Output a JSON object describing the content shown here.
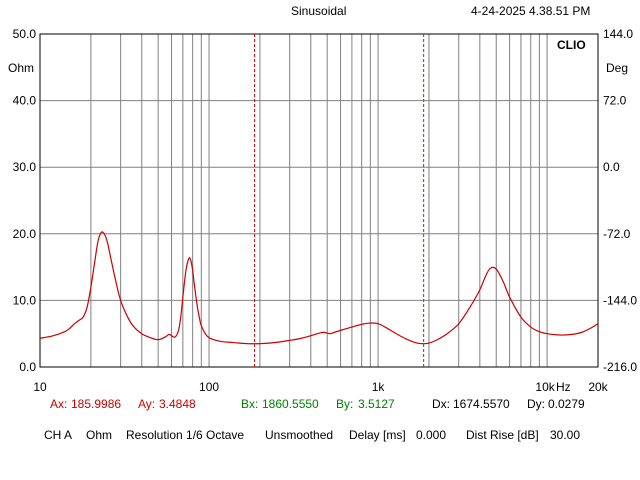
{
  "header": {
    "mode": "Sinusoidal",
    "datetime": "4-24-2025 4.38.51 PM"
  },
  "chart_data": {
    "type": "line",
    "brand": "CLIO",
    "x_scale": "log",
    "xlim": [
      10,
      20000
    ],
    "ylim": [
      0,
      50
    ],
    "ylim_right": [
      -216,
      144
    ],
    "left_unit": "Ohm",
    "right_unit": "Deg",
    "y_ticks_left": [
      "50.0",
      "40.0",
      "30.0",
      "20.0",
      "10.0",
      "0.0"
    ],
    "y_ticks_right": [
      "144.0",
      "72.0",
      "0.0",
      "-72.0",
      "-144.0",
      "-216.0"
    ],
    "x_ticks": [
      {
        "value": 10,
        "label": "10"
      },
      {
        "value": 100,
        "label": "100"
      },
      {
        "value": 1000,
        "label": "1k"
      },
      {
        "value": 10000,
        "label": "10k"
      },
      {
        "value": 20000,
        "label": "20k"
      }
    ],
    "x_unit_label": "Hz",
    "grid": true,
    "background": "#ffffff",
    "grid_color": "#808080",
    "curve_color": "#cc0000",
    "cursor_a_color": "#cc0000",
    "cursor_b_color": "#008000",
    "cursor_a_x": 186,
    "cursor_b_x": 1860.6,
    "series": [
      {
        "color": "#cc0000",
        "x": [
          10,
          12,
          14,
          15,
          16,
          17,
          18,
          19,
          20,
          21,
          22,
          23,
          24,
          25,
          26,
          28,
          30,
          33,
          36,
          40,
          45,
          50,
          55,
          58,
          60,
          63,
          66,
          68,
          70,
          73,
          76,
          78,
          80,
          82,
          84,
          86,
          88,
          90,
          95,
          100,
          110,
          120,
          135,
          150,
          170,
          186,
          200,
          250,
          300,
          350,
          400,
          450,
          480,
          500,
          520,
          550,
          600,
          700,
          800,
          900,
          1000,
          1100,
          1300,
          1500,
          1700,
          1860,
          2000,
          2200,
          2500,
          3000,
          3500,
          4000,
          4300,
          4600,
          5000,
          5500,
          6000,
          7000,
          8000,
          9000,
          10000,
          12000,
          14000,
          16000,
          18000,
          20000
        ],
        "y": [
          4.3,
          4.7,
          5.3,
          5.8,
          6.5,
          7.0,
          7.5,
          9.0,
          12.0,
          15.5,
          18.8,
          20.2,
          20.0,
          18.8,
          16.8,
          13.0,
          10.0,
          7.5,
          6.0,
          5.0,
          4.4,
          4.1,
          4.5,
          4.9,
          4.7,
          4.5,
          5.5,
          7.5,
          10.5,
          14.5,
          16.3,
          16.0,
          14.5,
          12.2,
          10.2,
          8.5,
          7.2,
          6.2,
          5.0,
          4.4,
          4.0,
          3.8,
          3.7,
          3.6,
          3.5,
          3.5,
          3.5,
          3.7,
          4.0,
          4.3,
          4.7,
          5.1,
          5.2,
          5.1,
          5.0,
          5.2,
          5.5,
          6.0,
          6.4,
          6.6,
          6.5,
          6.0,
          4.9,
          4.1,
          3.6,
          3.5,
          3.6,
          4.0,
          4.8,
          6.5,
          9.0,
          11.6,
          13.5,
          14.8,
          14.7,
          12.8,
          10.5,
          7.5,
          6.0,
          5.3,
          5.0,
          4.8,
          4.9,
          5.2,
          5.8,
          6.5
        ]
      }
    ]
  },
  "cursors": {
    "ax_label": "Ax:",
    "ax_value": "185.9986",
    "ay_label": "Ay:",
    "ay_value": "3.4848",
    "bx_label": "Bx:",
    "bx_value": "1860.5550",
    "by_label": "By:",
    "by_value": "3.5127",
    "dx_label": "Dx:",
    "dx_value": "1674.5570",
    "dy_label": "Dy:",
    "dy_value": "0.0279"
  },
  "status": {
    "channel": "CH A",
    "unit": "Ohm",
    "resolution": "Resolution 1/6 Octave",
    "smoothing": "Unsmoothed",
    "delay_label": "Delay [ms]",
    "delay_value": "0.000",
    "dist_label": "Dist Rise [dB]",
    "dist_value": "30.00"
  }
}
